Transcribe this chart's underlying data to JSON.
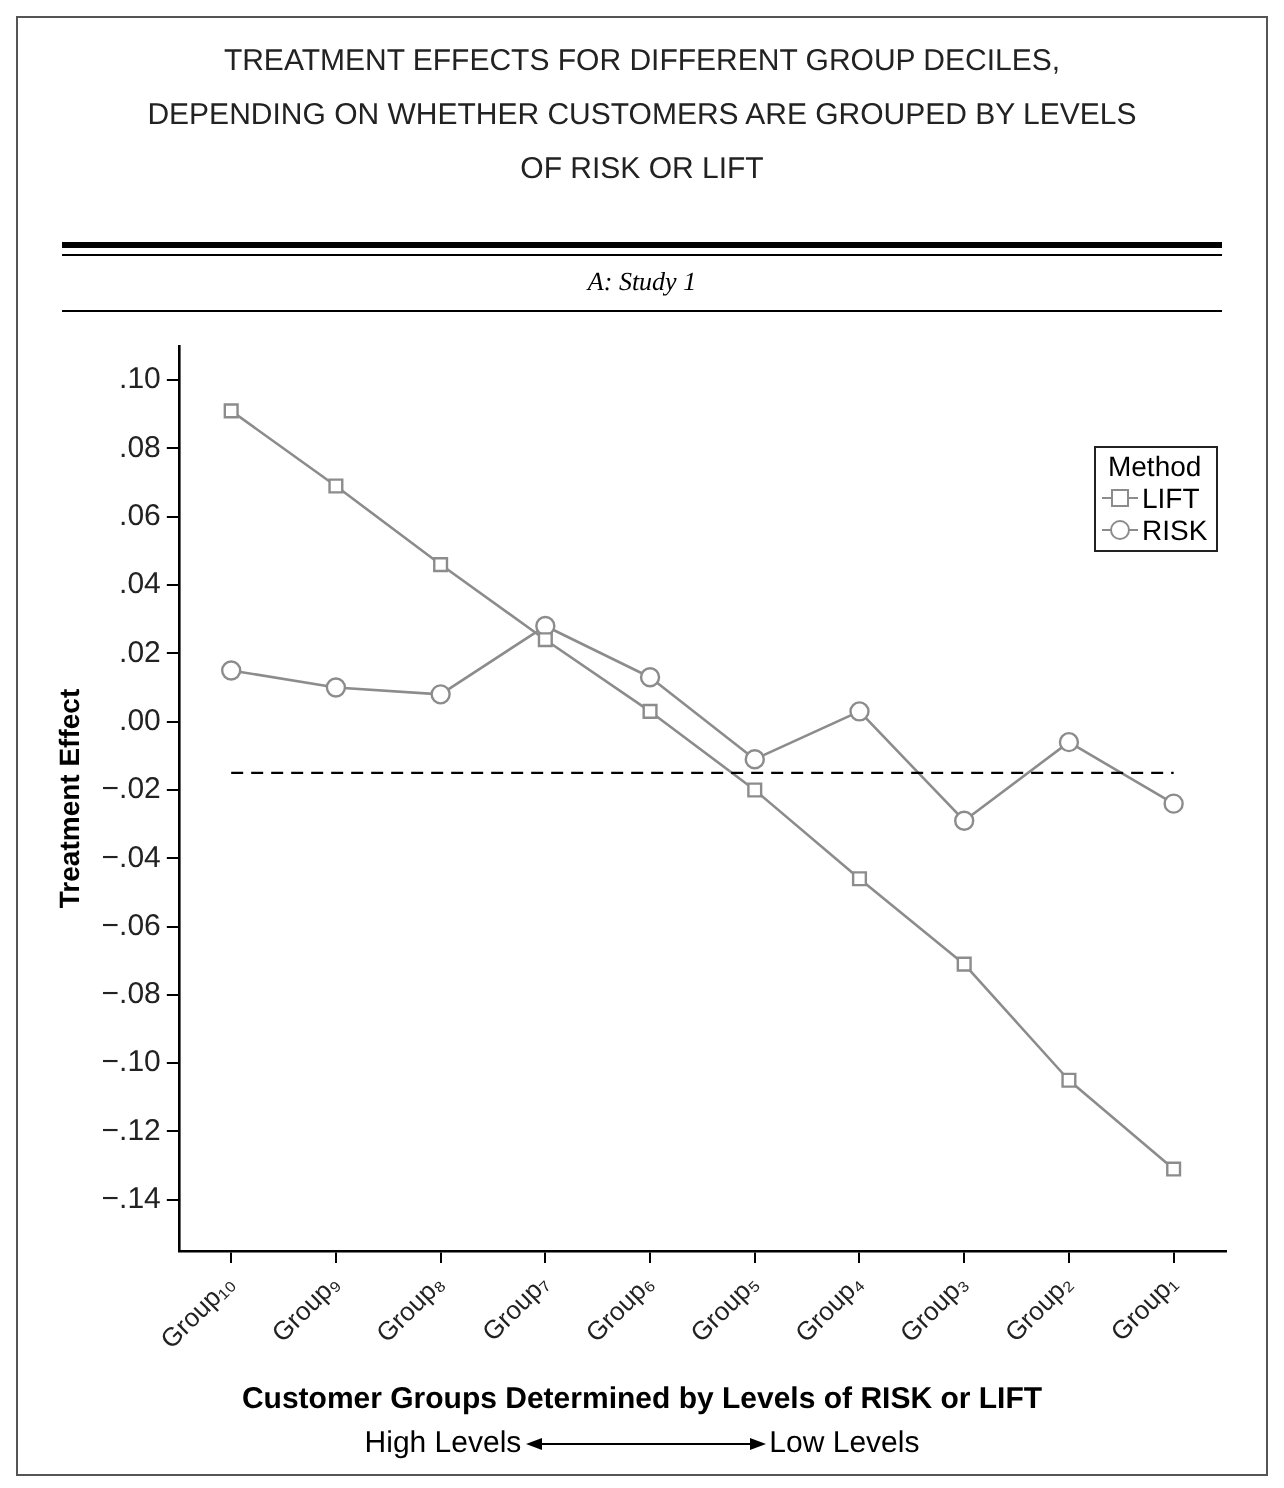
{
  "chart_data": {
    "type": "line",
    "title": "TREATMENT EFFECTS FOR DIFFERENT GROUP DECILES, DEPENDING ON WHETHER CUSTOMERS ARE GROUPED BY LEVELS OF RISK OR LIFT",
    "subtitle": "A: Study 1",
    "xlabel": "Customer Groups Determined by Levels of RISK or LIFT",
    "ylabel": "Treatment Effect",
    "legend_title": "Method",
    "annotations": [
      "High Levels",
      "Low Levels"
    ],
    "categories": [
      "Group₁₀",
      "Group₉",
      "Group₈",
      "Group₇",
      "Group₆",
      "Group₅",
      "Group₄",
      "Group₃",
      "Group₂",
      "Group₁"
    ],
    "series": [
      {
        "name": "LIFT",
        "color": "#8c8c8c",
        "marker": "square",
        "values": [
          0.091,
          0.069,
          0.046,
          0.024,
          0.003,
          -0.02,
          -0.046,
          -0.071,
          -0.105,
          -0.131
        ]
      },
      {
        "name": "RISK",
        "color": "#8c8c8c",
        "marker": "circle",
        "values": [
          0.015,
          0.01,
          0.008,
          0.028,
          0.013,
          -0.011,
          0.003,
          -0.029,
          -0.006,
          -0.024
        ]
      }
    ],
    "ylim": [
      -0.155,
      0.11
    ],
    "yticks": [
      {
        "value": 0.1,
        "label": ".10"
      },
      {
        "value": 0.08,
        "label": ".08"
      },
      {
        "value": 0.06,
        "label": ".06"
      },
      {
        "value": 0.04,
        "label": ".04"
      },
      {
        "value": 0.02,
        "label": ".02"
      },
      {
        "value": 0,
        "label": ".00"
      },
      {
        "value": -0.02,
        "label": "−.02"
      },
      {
        "value": -0.04,
        "label": "−.04"
      },
      {
        "value": -0.06,
        "label": "−.06"
      },
      {
        "value": -0.08,
        "label": "−.08"
      },
      {
        "value": -0.1,
        "label": "−.10"
      },
      {
        "value": -0.12,
        "label": "−.12"
      },
      {
        "value": -0.14,
        "label": "−.14"
      }
    ],
    "ref_lines": [
      {
        "axis": "y",
        "value": -0.015,
        "color": "#000000",
        "line_style": "dashed"
      }
    ],
    "grid": false,
    "legend": "top right",
    "line_style": "solid"
  }
}
